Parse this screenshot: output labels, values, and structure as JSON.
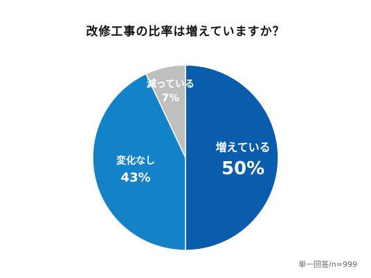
{
  "chart_data": {
    "type": "pie",
    "title": "改修工事の比率は増えていますか？",
    "slices": [
      {
        "label": "増えている",
        "value": 50,
        "value_label": "50%",
        "color": "#0a5cac"
      },
      {
        "label": "変化なし",
        "value": 43,
        "value_label": "43%",
        "color": "#1382c8"
      },
      {
        "label": "減っている",
        "value": 7,
        "value_label": "7%",
        "color": "#bfbfbf"
      }
    ],
    "start": "12 o'clock",
    "direction": "clockwise",
    "legend": "none",
    "note": "単一回答/n=999"
  }
}
